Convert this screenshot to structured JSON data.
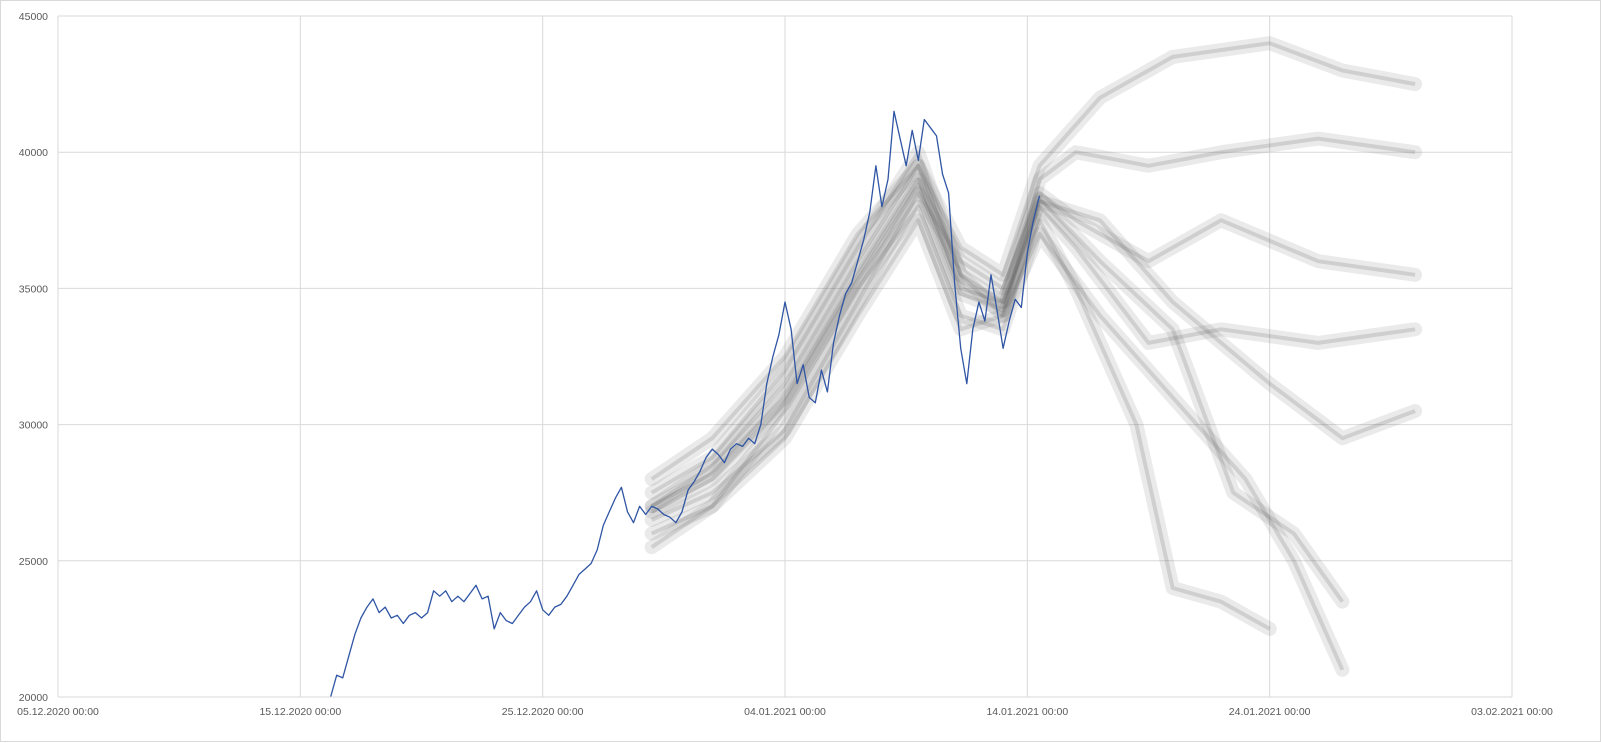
{
  "chart_data": {
    "type": "line",
    "title": "",
    "xlabel": "",
    "ylabel": "",
    "x_axis_kind": "datetime",
    "xlim": [
      "2020-12-05T00:00",
      "2021-02-03T00:00"
    ],
    "ylim": [
      20000,
      45000
    ],
    "x_tick_labels": [
      "05.12.2020 00:00",
      "15.12.2020 00:00",
      "25.12.2020 00:00",
      "04.01.2021 00:00",
      "14.01.2021 00:00",
      "24.01.2021 00:00",
      "03.02.2021 00:00"
    ],
    "y_ticks": [
      20000,
      25000,
      30000,
      35000,
      40000,
      45000
    ],
    "grid": true,
    "legend": "none",
    "colors": {
      "actual": "#2f55a4",
      "forecast_paths": "#5a5a5a",
      "grid": "#d9d9d9",
      "tick_text": "#595959"
    },
    "series": [
      {
        "role": "actual",
        "points": [
          [
            "2020-12-16T06:00",
            20000
          ],
          [
            "2020-12-16T12:00",
            20800
          ],
          [
            "2020-12-16T18:00",
            20700
          ],
          [
            "2020-12-17T00:00",
            21500
          ],
          [
            "2020-12-17T06:00",
            22300
          ],
          [
            "2020-12-17T12:00",
            22900
          ],
          [
            "2020-12-17T18:00",
            23300
          ],
          [
            "2020-12-18T00:00",
            23600
          ],
          [
            "2020-12-18T06:00",
            23100
          ],
          [
            "2020-12-18T12:00",
            23300
          ],
          [
            "2020-12-18T18:00",
            22900
          ],
          [
            "2020-12-19T00:00",
            23000
          ],
          [
            "2020-12-19T06:00",
            22700
          ],
          [
            "2020-12-19T12:00",
            23000
          ],
          [
            "2020-12-19T18:00",
            23100
          ],
          [
            "2020-12-20T00:00",
            22900
          ],
          [
            "2020-12-20T06:00",
            23100
          ],
          [
            "2020-12-20T12:00",
            23900
          ],
          [
            "2020-12-20T18:00",
            23700
          ],
          [
            "2020-12-21T00:00",
            23900
          ],
          [
            "2020-12-21T06:00",
            23500
          ],
          [
            "2020-12-21T12:00",
            23700
          ],
          [
            "2020-12-21T18:00",
            23500
          ],
          [
            "2020-12-22T00:00",
            23800
          ],
          [
            "2020-12-22T06:00",
            24100
          ],
          [
            "2020-12-22T12:00",
            23600
          ],
          [
            "2020-12-22T18:00",
            23700
          ],
          [
            "2020-12-23T00:00",
            22500
          ],
          [
            "2020-12-23T06:00",
            23100
          ],
          [
            "2020-12-23T12:00",
            22800
          ],
          [
            "2020-12-23T18:00",
            22700
          ],
          [
            "2020-12-24T00:00",
            23000
          ],
          [
            "2020-12-24T06:00",
            23300
          ],
          [
            "2020-12-24T12:00",
            23500
          ],
          [
            "2020-12-24T18:00",
            23900
          ],
          [
            "2020-12-25T00:00",
            23200
          ],
          [
            "2020-12-25T06:00",
            23000
          ],
          [
            "2020-12-25T12:00",
            23300
          ],
          [
            "2020-12-25T18:00",
            23400
          ],
          [
            "2020-12-26T00:00",
            23700
          ],
          [
            "2020-12-26T06:00",
            24100
          ],
          [
            "2020-12-26T12:00",
            24500
          ],
          [
            "2020-12-26T18:00",
            24700
          ],
          [
            "2020-12-27T00:00",
            24900
          ],
          [
            "2020-12-27T06:00",
            25400
          ],
          [
            "2020-12-27T12:00",
            26300
          ],
          [
            "2020-12-27T18:00",
            26800
          ],
          [
            "2020-12-28T00:00",
            27300
          ],
          [
            "2020-12-28T06:00",
            27700
          ],
          [
            "2020-12-28T12:00",
            26800
          ],
          [
            "2020-12-28T18:00",
            26400
          ],
          [
            "2020-12-29T00:00",
            27000
          ],
          [
            "2020-12-29T06:00",
            26700
          ],
          [
            "2020-12-29T12:00",
            27000
          ],
          [
            "2020-12-29T18:00",
            26900
          ],
          [
            "2020-12-30T00:00",
            26700
          ],
          [
            "2020-12-30T06:00",
            26600
          ],
          [
            "2020-12-30T12:00",
            26400
          ],
          [
            "2020-12-30T18:00",
            26800
          ],
          [
            "2020-12-31T00:00",
            27600
          ],
          [
            "2020-12-31T06:00",
            27900
          ],
          [
            "2020-12-31T12:00",
            28300
          ],
          [
            "2020-12-31T18:00",
            28800
          ],
          [
            "2021-01-01T00:00",
            29100
          ],
          [
            "2021-01-01T06:00",
            28900
          ],
          [
            "2021-01-01T12:00",
            28600
          ],
          [
            "2021-01-01T18:00",
            29100
          ],
          [
            "2021-01-02T00:00",
            29300
          ],
          [
            "2021-01-02T06:00",
            29200
          ],
          [
            "2021-01-02T12:00",
            29500
          ],
          [
            "2021-01-02T18:00",
            29300
          ],
          [
            "2021-01-03T00:00",
            30000
          ],
          [
            "2021-01-03T06:00",
            31500
          ],
          [
            "2021-01-03T12:00",
            32500
          ],
          [
            "2021-01-03T18:00",
            33300
          ],
          [
            "2021-01-04T00:00",
            34500
          ],
          [
            "2021-01-04T06:00",
            33500
          ],
          [
            "2021-01-04T12:00",
            31500
          ],
          [
            "2021-01-04T18:00",
            32200
          ],
          [
            "2021-01-05T00:00",
            31000
          ],
          [
            "2021-01-05T06:00",
            30800
          ],
          [
            "2021-01-05T12:00",
            32000
          ],
          [
            "2021-01-05T18:00",
            31200
          ],
          [
            "2021-01-06T00:00",
            33000
          ],
          [
            "2021-01-06T06:00",
            34000
          ],
          [
            "2021-01-06T12:00",
            34800
          ],
          [
            "2021-01-06T18:00",
            35200
          ],
          [
            "2021-01-07T00:00",
            36000
          ],
          [
            "2021-01-07T06:00",
            36800
          ],
          [
            "2021-01-07T12:00",
            37800
          ],
          [
            "2021-01-07T18:00",
            39500
          ],
          [
            "2021-01-08T00:00",
            38000
          ],
          [
            "2021-01-08T06:00",
            39000
          ],
          [
            "2021-01-08T12:00",
            41500
          ],
          [
            "2021-01-08T18:00",
            40500
          ],
          [
            "2021-01-09T00:00",
            39500
          ],
          [
            "2021-01-09T06:00",
            40800
          ],
          [
            "2021-01-09T12:00",
            39700
          ],
          [
            "2021-01-09T18:00",
            41200
          ],
          [
            "2021-01-10T00:00",
            40900
          ],
          [
            "2021-01-10T06:00",
            40600
          ],
          [
            "2021-01-10T12:00",
            39200
          ],
          [
            "2021-01-10T18:00",
            38500
          ],
          [
            "2021-01-11T00:00",
            35200
          ],
          [
            "2021-01-11T06:00",
            32800
          ],
          [
            "2021-01-11T12:00",
            31500
          ],
          [
            "2021-01-11T18:00",
            33500
          ],
          [
            "2021-01-12T00:00",
            34500
          ],
          [
            "2021-01-12T06:00",
            33800
          ],
          [
            "2021-01-12T12:00",
            35500
          ],
          [
            "2021-01-12T18:00",
            34200
          ],
          [
            "2021-01-13T00:00",
            32800
          ],
          [
            "2021-01-13T06:00",
            33800
          ],
          [
            "2021-01-13T12:00",
            34600
          ],
          [
            "2021-01-13T18:00",
            34300
          ],
          [
            "2021-01-14T00:00",
            36300
          ],
          [
            "2021-01-14T06:00",
            37500
          ],
          [
            "2021-01-14T12:00",
            38400
          ]
        ]
      },
      {
        "role": "forecast_paths",
        "paths": [
          [
            [
              "2020-12-29T12:00",
              27000
            ],
            [
              "2021-01-01T00:00",
              28200
            ],
            [
              "2021-01-04T00:00",
              31000
            ],
            [
              "2021-01-07T00:00",
              35500
            ],
            [
              "2021-01-09T12:00",
              39000
            ],
            [
              "2021-01-11T06:00",
              35000
            ],
            [
              "2021-01-13T00:00",
              34500
            ],
            [
              "2021-01-14T12:00",
              38000
            ],
            [
              "2021-01-16T00:00",
              36500
            ],
            [
              "2021-01-19T00:00",
              33000
            ],
            [
              "2021-01-22T00:00",
              33500
            ],
            [
              "2021-01-26T00:00",
              33000
            ],
            [
              "2021-01-30T00:00",
              33500
            ]
          ],
          [
            [
              "2020-12-29T12:00",
              26500
            ],
            [
              "2021-01-01T00:00",
              27500
            ],
            [
              "2021-01-04T00:00",
              29800
            ],
            [
              "2021-01-07T00:00",
              34500
            ],
            [
              "2021-01-09T12:00",
              38500
            ],
            [
              "2021-01-11T06:00",
              36000
            ],
            [
              "2021-01-13T00:00",
              35000
            ],
            [
              "2021-01-14T12:00",
              38500
            ],
            [
              "2021-01-16T00:00",
              37500
            ],
            [
              "2021-01-19T00:00",
              36000
            ],
            [
              "2021-01-22T00:00",
              37500
            ],
            [
              "2021-01-26T00:00",
              36000
            ],
            [
              "2021-01-30T00:00",
              35500
            ]
          ],
          [
            [
              "2020-12-29T12:00",
              27500
            ],
            [
              "2021-01-01T00:00",
              28800
            ],
            [
              "2021-01-04T00:00",
              32000
            ],
            [
              "2021-01-07T00:00",
              36500
            ],
            [
              "2021-01-09T12:00",
              40000
            ],
            [
              "2021-01-11T06:00",
              35500
            ],
            [
              "2021-01-13T00:00",
              34000
            ],
            [
              "2021-01-14T12:00",
              39000
            ],
            [
              "2021-01-16T00:00",
              40000
            ],
            [
              "2021-01-19T00:00",
              39500
            ],
            [
              "2021-01-22T00:00",
              40000
            ],
            [
              "2021-01-26T00:00",
              40500
            ],
            [
              "2021-01-30T00:00",
              40000
            ]
          ],
          [
            [
              "2020-12-29T12:00",
              26000
            ],
            [
              "2021-01-01T00:00",
              27000
            ],
            [
              "2021-01-04T00:00",
              30500
            ],
            [
              "2021-01-07T00:00",
              35000
            ],
            [
              "2021-01-09T12:00",
              38000
            ],
            [
              "2021-01-11T06:00",
              34000
            ],
            [
              "2021-01-13T00:00",
              33500
            ],
            [
              "2021-01-14T12:00",
              37500
            ],
            [
              "2021-01-16T00:00",
              35000
            ],
            [
              "2021-01-18T12:00",
              30000
            ],
            [
              "2021-01-20T00:00",
              24000
            ],
            [
              "2021-01-22T00:00",
              23500
            ],
            [
              "2021-01-24T00:00",
              22500
            ]
          ],
          [
            [
              "2020-12-29T12:00",
              28000
            ],
            [
              "2021-01-01T00:00",
              29500
            ],
            [
              "2021-01-04T00:00",
              32500
            ],
            [
              "2021-01-07T00:00",
              37000
            ],
            [
              "2021-01-09T12:00",
              39500
            ],
            [
              "2021-01-11T06:00",
              36500
            ],
            [
              "2021-01-13T00:00",
              35500
            ],
            [
              "2021-01-14T12:00",
              39500
            ],
            [
              "2021-01-17T00:00",
              42000
            ],
            [
              "2021-01-20T00:00",
              43500
            ],
            [
              "2021-01-24T00:00",
              44000
            ],
            [
              "2021-01-27T00:00",
              43000
            ],
            [
              "2021-01-30T00:00",
              42500
            ]
          ],
          [
            [
              "2020-12-29T12:00",
              25500
            ],
            [
              "2021-01-01T00:00",
              27000
            ],
            [
              "2021-01-04T00:00",
              29500
            ],
            [
              "2021-01-07T00:00",
              34000
            ],
            [
              "2021-01-09T12:00",
              37500
            ],
            [
              "2021-01-11T06:00",
              33500
            ],
            [
              "2021-01-13T00:00",
              34000
            ],
            [
              "2021-01-14T12:00",
              37000
            ],
            [
              "2021-01-17T00:00",
              34000
            ],
            [
              "2021-01-20T00:00",
              31000
            ],
            [
              "2021-01-23T00:00",
              28000
            ],
            [
              "2021-01-25T00:00",
              25000
            ],
            [
              "2021-01-27T00:00",
              21000
            ]
          ],
          [
            [
              "2020-12-29T12:00",
              27000
            ],
            [
              "2021-01-01T00:00",
              28500
            ],
            [
              "2021-01-04T00:00",
              31500
            ],
            [
              "2021-01-07T00:00",
              36000
            ],
            [
              "2021-01-09T12:00",
              39500
            ],
            [
              "2021-01-11T06:00",
              35500
            ],
            [
              "2021-01-13T00:00",
              34500
            ],
            [
              "2021-01-14T12:00",
              38200
            ],
            [
              "2021-01-17T00:00",
              37500
            ],
            [
              "2021-01-20T00:00",
              34500
            ],
            [
              "2021-01-24T00:00",
              31500
            ],
            [
              "2021-01-27T00:00",
              29500
            ],
            [
              "2021-01-30T00:00",
              30500
            ]
          ],
          [
            [
              "2020-12-29T12:00",
              26800
            ],
            [
              "2021-01-01T00:00",
              28000
            ],
            [
              "2021-01-04T00:00",
              30800
            ],
            [
              "2021-01-07T00:00",
              35300
            ],
            [
              "2021-01-09T12:00",
              38800
            ],
            [
              "2021-01-11T06:00",
              34800
            ],
            [
              "2021-01-13T00:00",
              34200
            ],
            [
              "2021-01-14T12:00",
              38300
            ],
            [
              "2021-01-17T00:00",
              36000
            ],
            [
              "2021-01-20T00:00",
              33500
            ],
            [
              "2021-01-22T12:00",
              27500
            ],
            [
              "2021-01-25T00:00",
              26000
            ],
            [
              "2021-01-27T00:00",
              23500
            ]
          ]
        ]
      }
    ]
  }
}
